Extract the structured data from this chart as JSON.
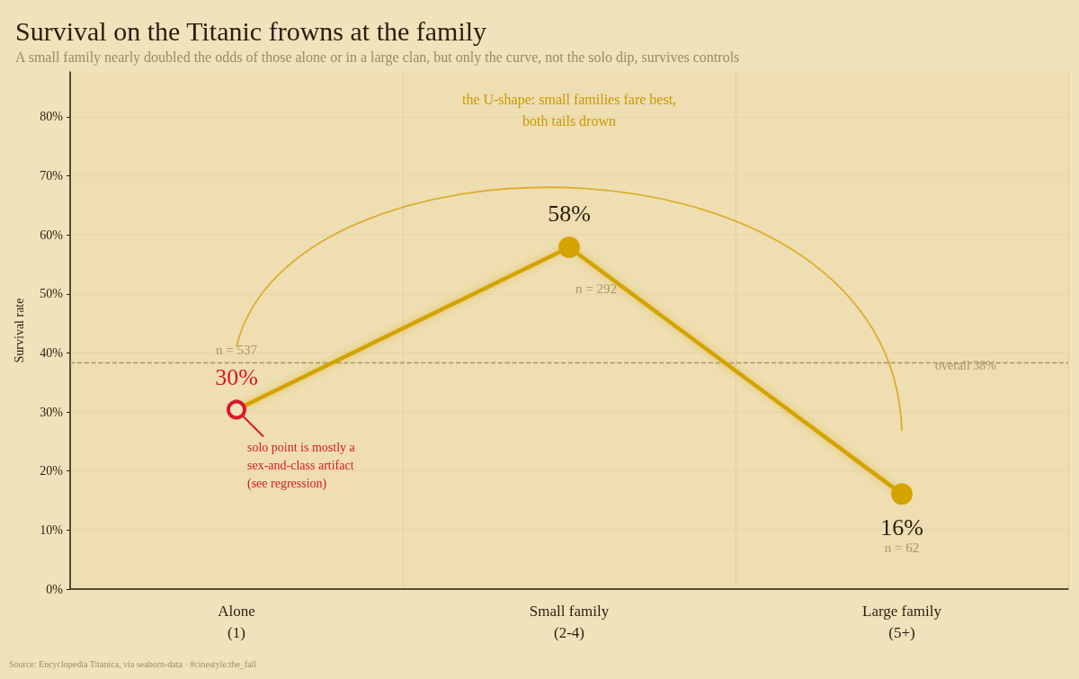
{
  "chart_data": {
    "type": "line",
    "title": "Survival on the Titanic frowns at the family",
    "subtitle": "A small family nearly doubled the odds of those alone or in a large clan, but only the curve, not the solo dip, survives controls",
    "ylabel": "Survival rate",
    "categories": [
      "Alone\n(1)",
      "Small family\n(2-4)",
      "Large family\n(5+)"
    ],
    "ylim": [
      0,
      87.6
    ],
    "yticks": [
      {
        "value": 0,
        "label": "0%"
      },
      {
        "value": 10,
        "label": "10%"
      },
      {
        "value": 20,
        "label": "20%"
      },
      {
        "value": 30,
        "label": "30%"
      },
      {
        "value": 40,
        "label": "40%"
      },
      {
        "value": 50,
        "label": "50%"
      },
      {
        "value": 60,
        "label": "60%"
      },
      {
        "value": 70,
        "label": "70%"
      },
      {
        "value": 80,
        "label": "80%"
      }
    ],
    "grid": true,
    "marker": "circle",
    "line_style": "solid",
    "series": [
      {
        "color": "#d4a300",
        "values": [
          30.4,
          57.9,
          16.1
        ],
        "colors": [
          "#d7192a",
          "#d4a300",
          "#d4a300"
        ],
        "value_labels": [
          "30%",
          "58%",
          "16%"
        ]
      }
    ],
    "ref_lines": [
      {
        "axis": "y",
        "value": 38.4,
        "label": "overall 38%",
        "color": "#a8946c",
        "line_style": "dashed"
      }
    ],
    "annotations": [
      "n = 537",
      "n = 292",
      "n = 62",
      "the U-shape: small families fare best,\nboth tails drown",
      {
        "text": "solo point is mostly a\nsex-and-class artifact\n(see regression)",
        "x": "Alone\n(1)",
        "y": 30.4
      },
      "Source: Encyclopedia Titanica, via seaborn-data · #cinestyle:the_fall"
    ]
  }
}
